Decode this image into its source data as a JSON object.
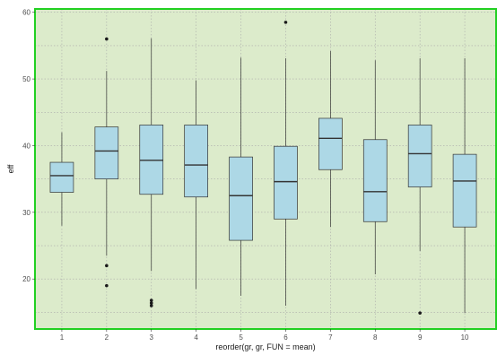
{
  "chart_data": {
    "type": "boxplot",
    "xlabel": "reorder(gr, gr, FUN = mean)",
    "ylabel": "eff",
    "ylim": [
      12.5,
      60.5
    ],
    "yticks": [
      20,
      30,
      40,
      50,
      60
    ],
    "categories": [
      "1",
      "2",
      "3",
      "4",
      "5",
      "6",
      "7",
      "8",
      "9",
      "10"
    ],
    "boxes": [
      {
        "min": 28.0,
        "q1": 33.0,
        "median": 35.5,
        "q3": 37.5,
        "max": 42.0,
        "outliers": []
      },
      {
        "min": 23.5,
        "q1": 35.0,
        "median": 39.2,
        "q3": 42.8,
        "max": 51.2,
        "outliers": [
          56.0,
          22.0,
          19.0
        ]
      },
      {
        "min": 21.2,
        "q1": 32.7,
        "median": 37.8,
        "q3": 43.1,
        "max": 56.1,
        "outliers": [
          16.8,
          16.4,
          16.0
        ]
      },
      {
        "min": 18.5,
        "q1": 32.3,
        "median": 37.1,
        "q3": 43.1,
        "max": 49.8,
        "outliers": []
      },
      {
        "min": 17.5,
        "q1": 25.8,
        "median": 32.5,
        "q3": 38.3,
        "max": 53.2,
        "outliers": []
      },
      {
        "min": 16.0,
        "q1": 29.0,
        "median": 34.6,
        "q3": 39.9,
        "max": 53.1,
        "outliers": [
          58.5
        ]
      },
      {
        "min": 27.8,
        "q1": 36.4,
        "median": 41.1,
        "q3": 44.1,
        "max": 54.2,
        "outliers": []
      },
      {
        "min": 20.7,
        "q1": 28.6,
        "median": 33.1,
        "q3": 40.9,
        "max": 52.8,
        "outliers": []
      },
      {
        "min": 24.2,
        "q1": 33.8,
        "median": 38.8,
        "q3": 43.1,
        "max": 53.1,
        "outliers": [
          14.9
        ]
      },
      {
        "min": 14.9,
        "q1": 27.8,
        "median": 34.7,
        "q3": 38.7,
        "max": 53.1,
        "outliers": []
      }
    ],
    "grid": true,
    "colors": {
      "panel_background": "#dcebcb",
      "panel_border": "#22d022",
      "box_fill": "#add8e6",
      "box_stroke": "#333333",
      "whisker": "#333333",
      "outlier": "#1a1a1a",
      "grid": "#aaaaaa"
    }
  }
}
